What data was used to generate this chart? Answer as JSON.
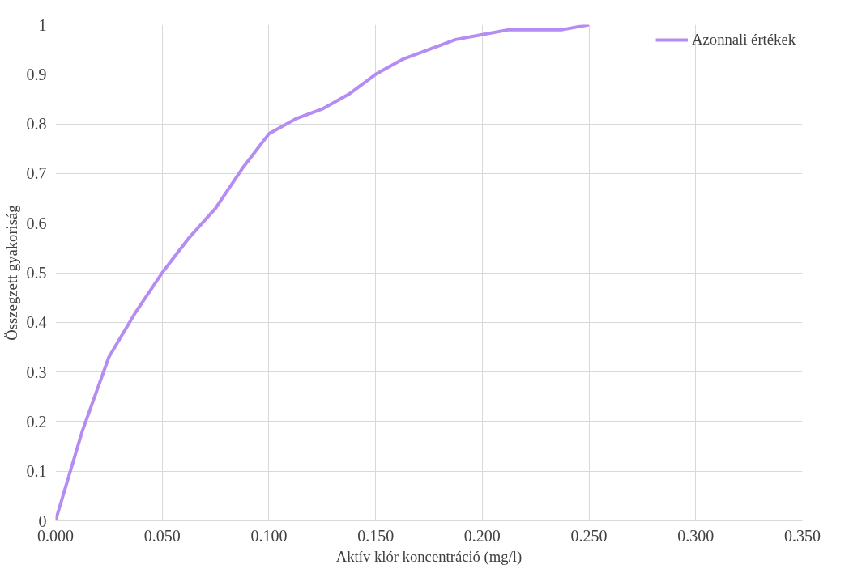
{
  "chart_data": {
    "type": "line",
    "xlabel": "Aktív klór koncentráció (mg/l)",
    "ylabel": "Összegzett gyakoriság",
    "series": [
      {
        "name": "Azonnali értékek",
        "color": "#b48cf2",
        "x": [
          0,
          0.0125,
          0.025,
          0.0375,
          0.05,
          0.0625,
          0.075,
          0.0875,
          0.1,
          0.1125,
          0.125,
          0.1375,
          0.15,
          0.1625,
          0.175,
          0.1875,
          0.2,
          0.2125,
          0.225,
          0.2375,
          0.25
        ],
        "values": [
          0,
          0.18,
          0.33,
          0.42,
          0.5,
          0.57,
          0.63,
          0.71,
          0.78,
          0.81,
          0.83,
          0.86,
          0.9,
          0.93,
          0.95,
          0.97,
          0.98,
          0.99,
          0.99,
          0.99,
          1.0
        ]
      }
    ],
    "xlim": [
      0,
      0.35
    ],
    "xticks": [
      {
        "value": 0,
        "label": "0.000"
      },
      {
        "value": 0.05,
        "label": "0.050"
      },
      {
        "value": 0.1,
        "label": "0.100"
      },
      {
        "value": 0.15,
        "label": "0.150"
      },
      {
        "value": 0.2,
        "label": "0.200"
      },
      {
        "value": 0.25,
        "label": "0.250"
      },
      {
        "value": 0.3,
        "label": "0.300"
      },
      {
        "value": 0.35,
        "label": "0.350"
      }
    ],
    "ylim": [
      0,
      1
    ],
    "yticks": [
      0,
      0.1,
      0.2,
      0.3,
      0.4,
      0.5,
      0.6,
      0.7,
      0.8,
      0.9,
      1
    ],
    "grid": true,
    "legend": "top right",
    "marker": "none",
    "line_style": "solid"
  }
}
